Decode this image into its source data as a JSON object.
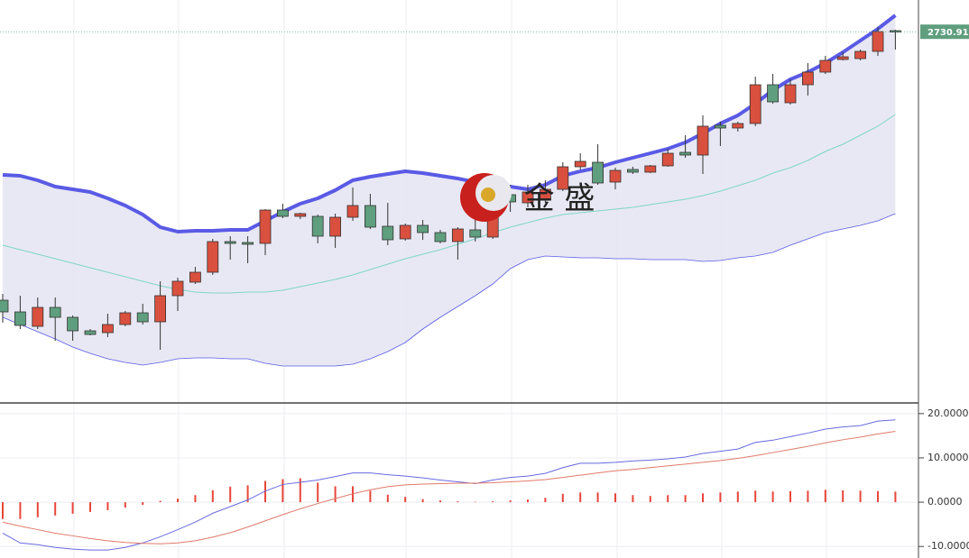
{
  "chart_data": [
    {
      "type": "candlestick",
      "ylim": [
        2567,
        2745
      ],
      "up_color": "#d9503f",
      "down_color": "#5f9e7e",
      "open": [
        2611.8,
        2606.6,
        2600.2,
        2608.6,
        2604.2,
        2598.2,
        2597.4,
        2601,
        2606.2,
        2602.2,
        2613.8,
        2619.8,
        2624.2,
        2637.8,
        2637.4,
        2637,
        2651.8,
        2649,
        2649,
        2640.2,
        2648.6,
        2653.8,
        2644.6,
        2639,
        2645,
        2641.8,
        2637.8,
        2643,
        2639.8,
        2658.6,
        2655,
        2656.2,
        2661,
        2671,
        2673,
        2664.2,
        2669.8,
        2668.6,
        2671.4,
        2677.4,
        2676.2,
        2689.4,
        2688.2,
        2690.2,
        2707.4,
        2699.4,
        2707.4,
        2713,
        2718.6,
        2719,
        2722.2,
        2731.4
      ],
      "high": [
        2614.6,
        2613.8,
        2613,
        2613,
        2605,
        2599,
        2605.8,
        2607,
        2610.2,
        2620.2,
        2621.8,
        2626.6,
        2639,
        2640.2,
        2640.2,
        2652.2,
        2654.6,
        2650.6,
        2649.8,
        2650.2,
        2661.8,
        2659,
        2655,
        2645.8,
        2647.4,
        2643,
        2644.2,
        2649.8,
        2663,
        2663,
        2663,
        2665,
        2673,
        2677,
        2681,
        2670.6,
        2671,
        2671.8,
        2679,
        2685,
        2693.8,
        2691,
        2691,
        2711,
        2712.2,
        2709.8,
        2717,
        2720.2,
        2721.8,
        2723,
        2733,
        2731.8
      ],
      "low": [
        2601.8,
        2599,
        2599,
        2593.8,
        2593.8,
        2596.2,
        2595.4,
        2600.2,
        2601,
        2589.8,
        2607,
        2619,
        2623,
        2629.8,
        2628.2,
        2631.8,
        2648.2,
        2647.8,
        2637,
        2635,
        2647,
        2643.4,
        2636.2,
        2638.2,
        2638.6,
        2637,
        2629.8,
        2637.8,
        2639,
        2651,
        2653,
        2655,
        2660.2,
        2669.8,
        2663,
        2661,
        2667.8,
        2668.2,
        2671,
        2675,
        2667.8,
        2680.2,
        2686.6,
        2689,
        2699,
        2698.6,
        2702.6,
        2712.2,
        2718.2,
        2718.2,
        2720.2,
        2723
      ],
      "close": [
        2606.6,
        2600.6,
        2608.6,
        2604.2,
        2598.2,
        2596.6,
        2601,
        2606.2,
        2602.2,
        2613.8,
        2620.2,
        2624.2,
        2637.8,
        2637,
        2636.6,
        2651.8,
        2649,
        2650.2,
        2640.2,
        2648.6,
        2653.8,
        2644.2,
        2638.6,
        2645,
        2641.8,
        2637.8,
        2643.4,
        2639.8,
        2657.8,
        2655.4,
        2659.8,
        2661,
        2671,
        2673.4,
        2663.8,
        2669.4,
        2668.6,
        2671.4,
        2677,
        2676.2,
        2689,
        2688.2,
        2690.2,
        2707.4,
        2699.8,
        2707.4,
        2713,
        2718.2,
        2719.8,
        2722.2,
        2731,
        2730.91
      ],
      "bands": {
        "fill": "#e4e4f2",
        "upper_color": "#5a5ae6",
        "middle_color": "#7fd6c6",
        "lower_color": "#5a5ae6",
        "upper": [
          2667.4,
          2667,
          2665,
          2662.2,
          2661,
          2659.8,
          2657,
          2653.8,
          2649.8,
          2644.2,
          2642.2,
          2642.6,
          2642.6,
          2643,
          2643,
          2647,
          2651,
          2654.6,
          2657,
          2660.6,
          2665,
          2666.6,
          2667.8,
          2669,
          2668.2,
          2667,
          2665.8,
          2664.2,
          2663,
          2662.2,
          2661,
          2663,
          2667,
          2669,
          2670.6,
          2673,
          2675,
          2677,
          2679,
          2681.8,
          2685.8,
          2690.2,
          2693.8,
          2699,
          2705,
          2709.8,
          2713,
          2717,
          2721.8,
          2727,
          2732.2,
          2738.2
        ],
        "middle": [
          2636.2,
          2634.2,
          2632.2,
          2630.2,
          2628.2,
          2626.2,
          2624.2,
          2622.2,
          2620.2,
          2618.2,
          2616.6,
          2615.4,
          2615,
          2615,
          2615.4,
          2615.4,
          2616.2,
          2617.8,
          2619.4,
          2621,
          2623,
          2625.4,
          2627.8,
          2630.2,
          2632.2,
          2634.2,
          2636.6,
          2639,
          2641.8,
          2644.2,
          2646.2,
          2648.2,
          2649.8,
          2650.6,
          2651.4,
          2652.2,
          2653,
          2654.2,
          2655.4,
          2656.6,
          2658.2,
          2660.2,
          2662.6,
          2665,
          2668.2,
          2670.6,
          2673.8,
          2677.8,
          2681,
          2685,
          2689,
          2694.2
        ],
        "lower": [
          2604.2,
          2601,
          2597.8,
          2594.6,
          2591,
          2588.2,
          2585.8,
          2584.2,
          2583,
          2584.2,
          2585.8,
          2586.2,
          2586.2,
          2585.8,
          2585.8,
          2583.8,
          2582.6,
          2582.6,
          2582.6,
          2582.6,
          2583.4,
          2585.8,
          2589,
          2593,
          2599,
          2604.2,
          2609,
          2613.8,
          2619,
          2625.8,
          2629.8,
          2631.4,
          2631,
          2630.6,
          2630.6,
          2630.2,
          2630.2,
          2629.8,
          2629.8,
          2629.8,
          2629,
          2629.4,
          2630.6,
          2631.4,
          2633,
          2636.2,
          2639,
          2641.8,
          2643.4,
          2645,
          2647,
          2650.2
        ]
      },
      "watermark": "金 盛"
    },
    {
      "type": "macd",
      "ylim": [
        -12.6,
        22
      ],
      "yticks": [
        {
          "value": 20,
          "label": "20.0000"
        },
        {
          "value": 10,
          "label": "10.0000"
        },
        {
          "value": 0,
          "label": "0.0000"
        },
        {
          "value": -10,
          "label": "-10.0000"
        }
      ],
      "grid": true,
      "series": [
        {
          "color": "#6a6ae0",
          "values": [
            -7.0,
            -9.2,
            -9.6,
            -10.2,
            -10.6,
            -10.8,
            -10.8,
            -10.2,
            -9.2,
            -7.8,
            -6.2,
            -4.5,
            -2.5,
            -1.0,
            0.5,
            2.5,
            4.0,
            4.5,
            5.0,
            5.8,
            6.6,
            6.6,
            6.2,
            5.9,
            5.5,
            5.0,
            4.6,
            4.2,
            5.0,
            5.6,
            5.9,
            6.5,
            7.8,
            8.8,
            8.8,
            9.0,
            9.3,
            9.5,
            9.8,
            10.2,
            11.0,
            11.5,
            12.0,
            13.5,
            14.0,
            14.8,
            15.6,
            16.5,
            17.0,
            17.3,
            18.3,
            18.6
          ]
        },
        {
          "color": "#e07a6a",
          "values": [
            -4.5,
            -5.4,
            -6.2,
            -7.0,
            -7.6,
            -8.2,
            -8.7,
            -9.1,
            -9.3,
            -9.4,
            -9.2,
            -8.7,
            -7.9,
            -6.9,
            -5.6,
            -4.2,
            -2.8,
            -1.5,
            -0.3,
            0.8,
            1.9,
            2.8,
            3.5,
            3.9,
            4.1,
            4.2,
            4.3,
            4.3,
            4.4,
            4.6,
            4.8,
            5.1,
            5.6,
            6.1,
            6.6,
            7.1,
            7.4,
            7.8,
            8.2,
            8.6,
            9.0,
            9.4,
            9.9,
            10.5,
            11.2,
            11.9,
            12.6,
            13.4,
            14.1,
            14.7,
            15.4,
            16.0
          ]
        }
      ],
      "histogram": {
        "color": "#e8463a",
        "values": [
          -3.8,
          -3.8,
          -3.4,
          -3.0,
          -2.6,
          -2.2,
          -1.8,
          -1.2,
          -0.6,
          0.3,
          0.8,
          1.6,
          2.7,
          3.5,
          3.8,
          4.8,
          5.2,
          5.4,
          4.4,
          3.6,
          3.6,
          2.6,
          1.7,
          1.2,
          0.7,
          0.4,
          0.2,
          0.1,
          0.2,
          0.4,
          0.6,
          1.0,
          1.9,
          2.2,
          2.2,
          2.0,
          1.6,
          1.4,
          1.6,
          1.6,
          2.0,
          2.2,
          2.4,
          2.6,
          2.4,
          2.5,
          2.6,
          2.8,
          2.7,
          2.6,
          2.5,
          2.4
        ]
      }
    }
  ]
}
